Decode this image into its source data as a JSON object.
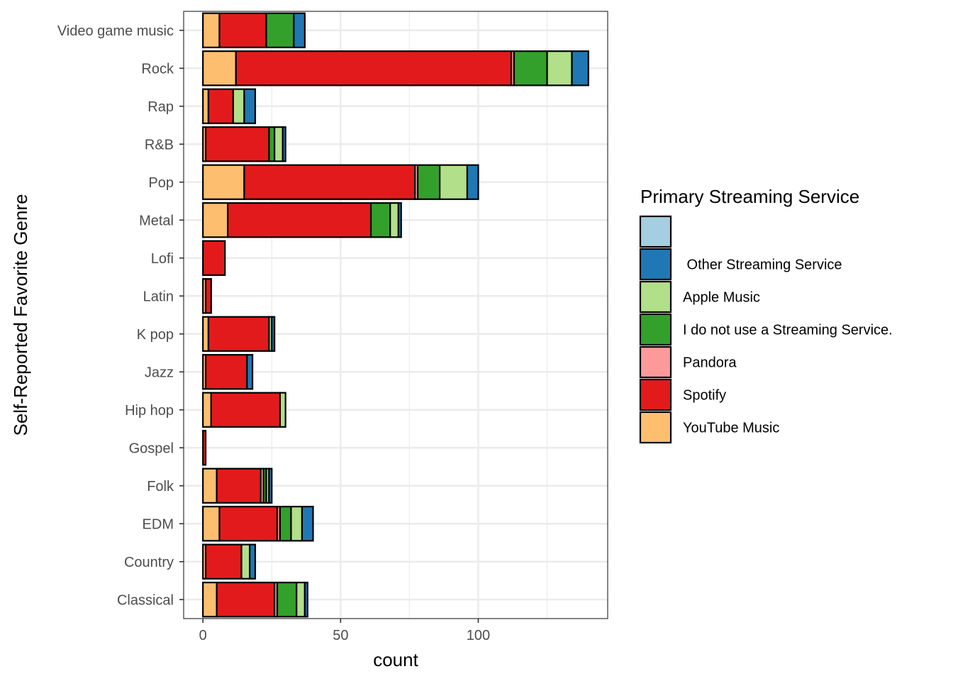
{
  "chart_data": {
    "type": "bar",
    "orientation": "horizontal",
    "stacked": true,
    "xlabel": "count",
    "ylabel": "Self-Reported Favorite Genre",
    "xlim": [
      -7,
      147
    ],
    "x_ticks": [
      0,
      50,
      100
    ],
    "grid": true,
    "legend_placement": "right",
    "categories": [
      "Classical",
      "Country",
      "EDM",
      "Folk",
      "Gospel",
      "Hip hop",
      "Jazz",
      "K pop",
      "Latin",
      "Lofi",
      "Metal",
      "Pop",
      "R&B",
      "Rap",
      "Rock",
      "Video game music"
    ],
    "stack_order": [
      "YouTube Music",
      "Spotify",
      "Pandora",
      "I do not use a Streaming Service.",
      "Apple Music",
      " Other Streaming Service",
      ""
    ],
    "series": [
      {
        "name": "",
        "color": "#A6CEE3",
        "values": [
          0,
          0,
          0,
          0,
          0,
          0,
          0,
          0,
          0,
          0,
          0,
          0,
          0,
          0,
          0,
          0
        ]
      },
      {
        "name": " Other Streaming Service",
        "color": "#1F78B4",
        "values": [
          1,
          2,
          4,
          1,
          0,
          0,
          2,
          1,
          0,
          0,
          1,
          4,
          1,
          4,
          6,
          4
        ]
      },
      {
        "name": "Apple Music",
        "color": "#B2DF8A",
        "values": [
          3,
          3,
          4,
          1,
          0,
          2,
          0,
          1,
          0,
          0,
          3,
          10,
          3,
          4,
          9,
          0
        ]
      },
      {
        "name": "I do not use a Streaming Service.",
        "color": "#33A02C",
        "values": [
          7,
          0,
          4,
          1,
          0,
          0,
          0,
          0,
          0,
          0,
          7,
          8,
          2,
          0,
          12,
          10
        ]
      },
      {
        "name": "Pandora",
        "color": "#FB9A99",
        "values": [
          1,
          0,
          1,
          1,
          0,
          0,
          0,
          0,
          0,
          0,
          0,
          1,
          0,
          0,
          1,
          0
        ]
      },
      {
        "name": "Spotify",
        "color": "#E31A1C",
        "values": [
          21,
          13,
          21,
          16,
          1,
          25,
          15,
          22,
          2,
          8,
          52,
          62,
          23,
          9,
          100,
          17
        ]
      },
      {
        "name": "YouTube Music",
        "color": "#FDBF6F",
        "values": [
          5,
          1,
          6,
          5,
          0,
          3,
          1,
          2,
          1,
          0,
          9,
          15,
          1,
          2,
          12,
          6
        ]
      }
    ]
  },
  "legend": {
    "title": "Primary Streaming Service"
  }
}
